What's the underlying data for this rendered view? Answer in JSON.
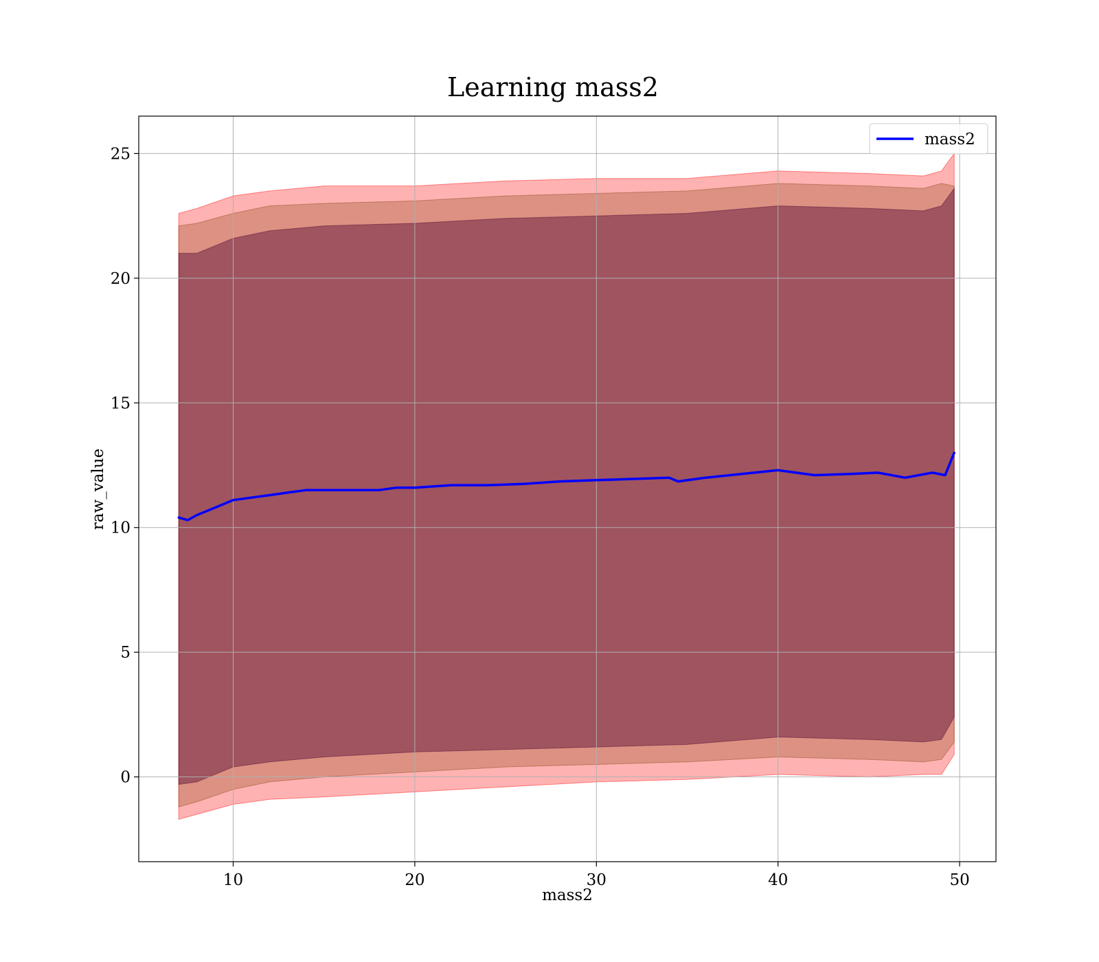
{
  "chart_data": {
    "type": "line",
    "title": "Learning mass2",
    "xlabel": "mass2",
    "ylabel": "raw_value",
    "xlim": [
      4.8,
      52
    ],
    "ylim": [
      -3.4,
      26.5
    ],
    "xticks": [
      10,
      20,
      30,
      40,
      50
    ],
    "yticks": [
      0,
      5,
      10,
      15,
      20,
      25
    ],
    "grid": true,
    "legend": {
      "position": "top-right",
      "entries": [
        "mass2"
      ]
    },
    "colors": {
      "line": "#0000ff",
      "band_outer": "#ff0000",
      "band_middle": "#8b4513",
      "band_inner": "#4b0030",
      "grid": "#b0b0b0"
    },
    "series": [
      {
        "name": "mass2",
        "x": [
          7.0,
          7.5,
          8.0,
          9.0,
          10.0,
          11.0,
          12.0,
          13.0,
          14.0,
          15.0,
          16.0,
          17.0,
          18.0,
          19.0,
          20.0,
          22.0,
          24.0,
          26.0,
          28.0,
          30.0,
          32.0,
          34.0,
          34.5,
          36.0,
          38.0,
          40.0,
          42.0,
          44.0,
          45.5,
          47.0,
          48.5,
          49.2,
          49.7
        ],
        "y": [
          10.4,
          10.3,
          10.5,
          10.8,
          11.1,
          11.2,
          11.3,
          11.4,
          11.5,
          11.5,
          11.5,
          11.5,
          11.5,
          11.6,
          11.6,
          11.7,
          11.7,
          11.75,
          11.85,
          11.9,
          11.95,
          12.0,
          11.85,
          12.0,
          12.15,
          12.3,
          12.1,
          12.15,
          12.2,
          12.0,
          12.2,
          12.1,
          13.0
        ]
      }
    ],
    "bands": [
      {
        "level": "outer",
        "x": [
          7.0,
          8.0,
          10.0,
          12.0,
          15.0,
          20.0,
          25.0,
          30.0,
          35.0,
          40.0,
          45.0,
          48.0,
          49.0,
          49.7
        ],
        "upper": [
          22.6,
          22.8,
          23.3,
          23.5,
          23.7,
          23.7,
          23.9,
          24.0,
          24.0,
          24.3,
          24.2,
          24.1,
          24.3,
          25.0
        ],
        "lower": [
          -1.7,
          -1.5,
          -1.1,
          -0.9,
          -0.8,
          -0.6,
          -0.4,
          -0.2,
          -0.1,
          0.1,
          0.0,
          0.1,
          0.1,
          0.9
        ]
      },
      {
        "level": "middle",
        "x": [
          7.0,
          8.0,
          10.0,
          12.0,
          15.0,
          20.0,
          25.0,
          30.0,
          35.0,
          40.0,
          45.0,
          48.0,
          49.0,
          49.7
        ],
        "upper": [
          22.1,
          22.2,
          22.6,
          22.9,
          23.0,
          23.1,
          23.3,
          23.4,
          23.5,
          23.8,
          23.7,
          23.6,
          23.8,
          23.7
        ],
        "lower": [
          -1.2,
          -1.0,
          -0.5,
          -0.2,
          0.0,
          0.2,
          0.4,
          0.5,
          0.6,
          0.8,
          0.7,
          0.6,
          0.7,
          1.4
        ]
      },
      {
        "level": "inner",
        "x": [
          7.0,
          8.0,
          10.0,
          12.0,
          15.0,
          20.0,
          25.0,
          30.0,
          35.0,
          40.0,
          45.0,
          48.0,
          49.0,
          49.7
        ],
        "upper": [
          21.0,
          21.0,
          21.6,
          21.9,
          22.1,
          22.2,
          22.4,
          22.5,
          22.6,
          22.9,
          22.8,
          22.7,
          22.9,
          23.6
        ],
        "lower": [
          -0.3,
          -0.2,
          0.4,
          0.6,
          0.8,
          1.0,
          1.1,
          1.2,
          1.3,
          1.6,
          1.5,
          1.4,
          1.5,
          2.4
        ]
      }
    ]
  }
}
